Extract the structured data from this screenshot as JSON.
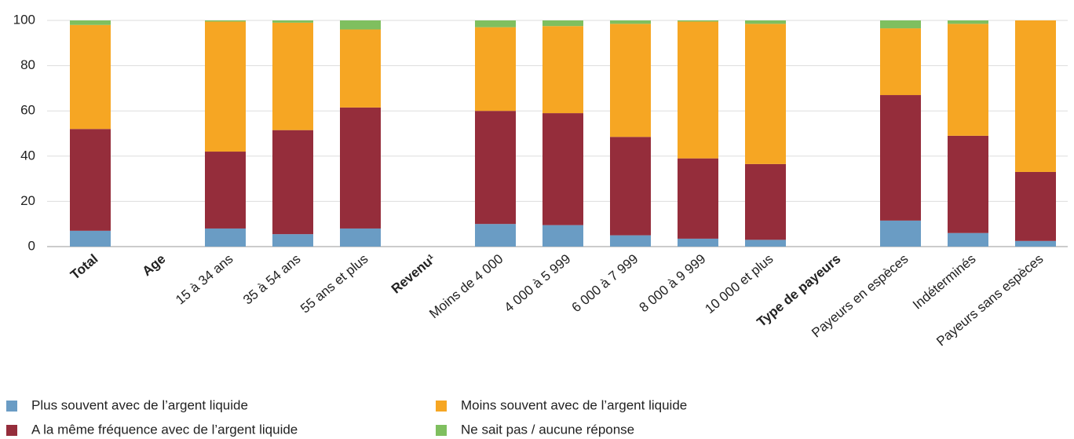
{
  "chart_data": {
    "type": "stacked_bar",
    "categories": [
      "Total",
      "Age",
      "15 à 34 ans",
      "35 à 54 ans",
      "55 ans et plus",
      "Revenu¹",
      "Moins de 4 000",
      "4 000 à 5 999",
      "6 000 à 7 999",
      "8 000 à 9 999",
      "10 000 et plus",
      "Type de payeurs",
      "Payeurs en espèces",
      "Indéterminés",
      "Payeurs sans espèces"
    ],
    "category_bold": [
      true,
      true,
      false,
      false,
      false,
      true,
      false,
      false,
      false,
      false,
      false,
      true,
      false,
      false,
      false
    ],
    "series": [
      {
        "name": "Plus souvent avec de l’argent liquide",
        "color": "#6a9cc4",
        "values": [
          7,
          null,
          8,
          5.5,
          8,
          null,
          10,
          9.5,
          5,
          3.5,
          3,
          null,
          11.5,
          6,
          2.5
        ]
      },
      {
        "name": "A la même fréquence avec de l’argent liquide",
        "color": "#952d3b",
        "values": [
          45,
          null,
          34,
          46,
          53.5,
          null,
          50,
          49.5,
          43.5,
          35.5,
          33.5,
          null,
          55.5,
          43,
          30.5
        ]
      },
      {
        "name": "Moins souvent avec de l’argent liquide",
        "color": "#f6a623",
        "values": [
          46,
          null,
          57.5,
          47.5,
          34.5,
          null,
          37,
          38.5,
          50,
          60.5,
          62,
          null,
          29.5,
          49.5,
          67
        ]
      },
      {
        "name": "Ne sait pas / aucune réponse",
        "color": "#7fbf5f",
        "values": [
          2,
          null,
          0.5,
          1,
          4,
          null,
          3,
          2.5,
          1.5,
          0.5,
          1.5,
          null,
          3.5,
          1.5,
          0
        ]
      }
    ],
    "ylim": [
      0,
      100
    ],
    "yticks": [
      0,
      20,
      40,
      60,
      80,
      100
    ],
    "grid": true
  }
}
